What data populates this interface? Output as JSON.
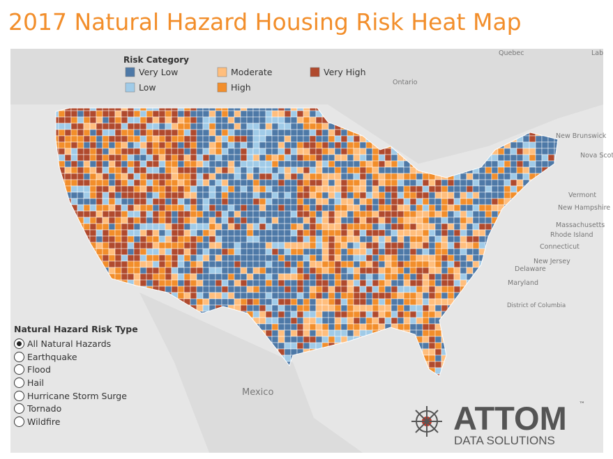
{
  "title": "2017 Natural Hazard Housing Risk Heat Map",
  "legend": {
    "title": "Risk Category",
    "items": [
      {
        "label": "Very Low",
        "color": "#4e79a7"
      },
      {
        "label": "Low",
        "color": "#a0cbe8"
      },
      {
        "label": "Moderate",
        "color": "#ffbe7d"
      },
      {
        "label": "High",
        "color": "#f28e2b"
      },
      {
        "label": "Very High",
        "color": "#b04a2e"
      }
    ]
  },
  "map_labels": [
    "Quebec",
    "Lab",
    "Ontario",
    "New Brunswick",
    "Nova Scotia",
    "Vermont",
    "New Hampshire",
    "Massachusetts",
    "Rhode Island",
    "Connecticut",
    "New Jersey",
    "Delaware",
    "Maryland",
    "District of Columbia",
    "Mexico"
  ],
  "filter": {
    "title": "Natural Hazard Risk Type",
    "options": [
      "All Natural Hazards",
      "Earthquake",
      "Flood",
      "Hail",
      "Hurricane Storm Surge",
      "Tornado",
      "Wildfire"
    ],
    "selected": 0
  },
  "logo": {
    "name": "ATTOM",
    "mark": "™",
    "tagline": "DATA SOLUTIONS"
  }
}
